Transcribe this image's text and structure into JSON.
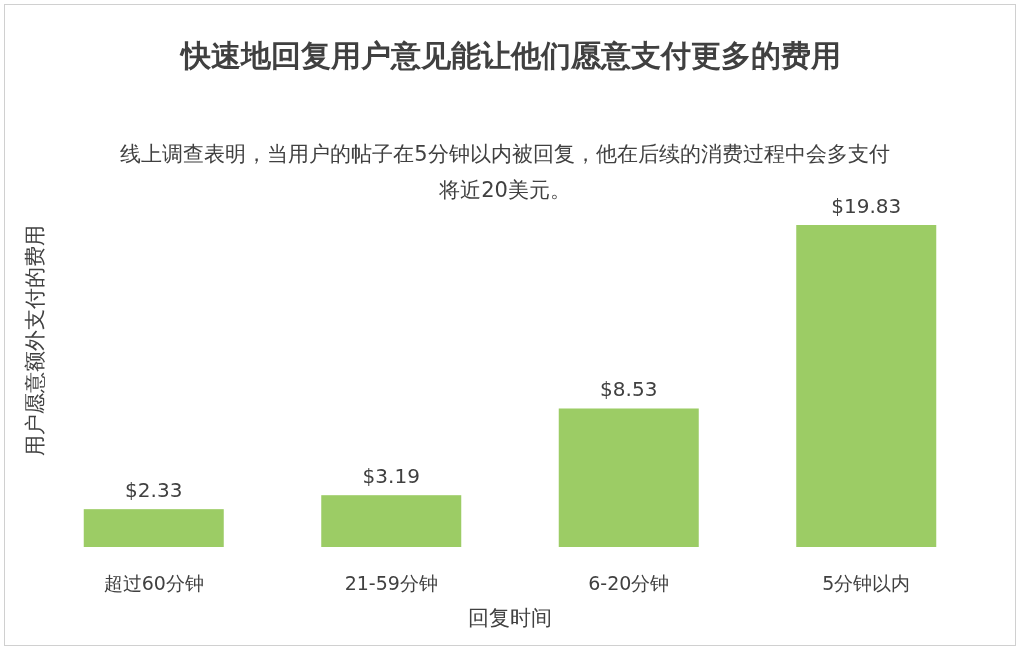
{
  "chart_data": {
    "type": "bar",
    "title": "快速地回复用户意见能让他们愿意支付更多的费用",
    "subtitle": "线上调查表明，当用户的帖子在5分钟以内被回复，他在后续的消费过程中会多支付将近20美元。",
    "xlabel": "回复时间",
    "ylabel": "用户愿意额外支付的费用",
    "categories": [
      "超过60分钟",
      "21-59分钟",
      "6-20分钟",
      "5分钟以内"
    ],
    "series": [
      {
        "color": "#9ccc65",
        "values": [
          2.33,
          3.19,
          8.53,
          19.83
        ],
        "value_labels": [
          "$2.33",
          "$3.19",
          "$8.53",
          "$19.83"
        ]
      }
    ]
  }
}
